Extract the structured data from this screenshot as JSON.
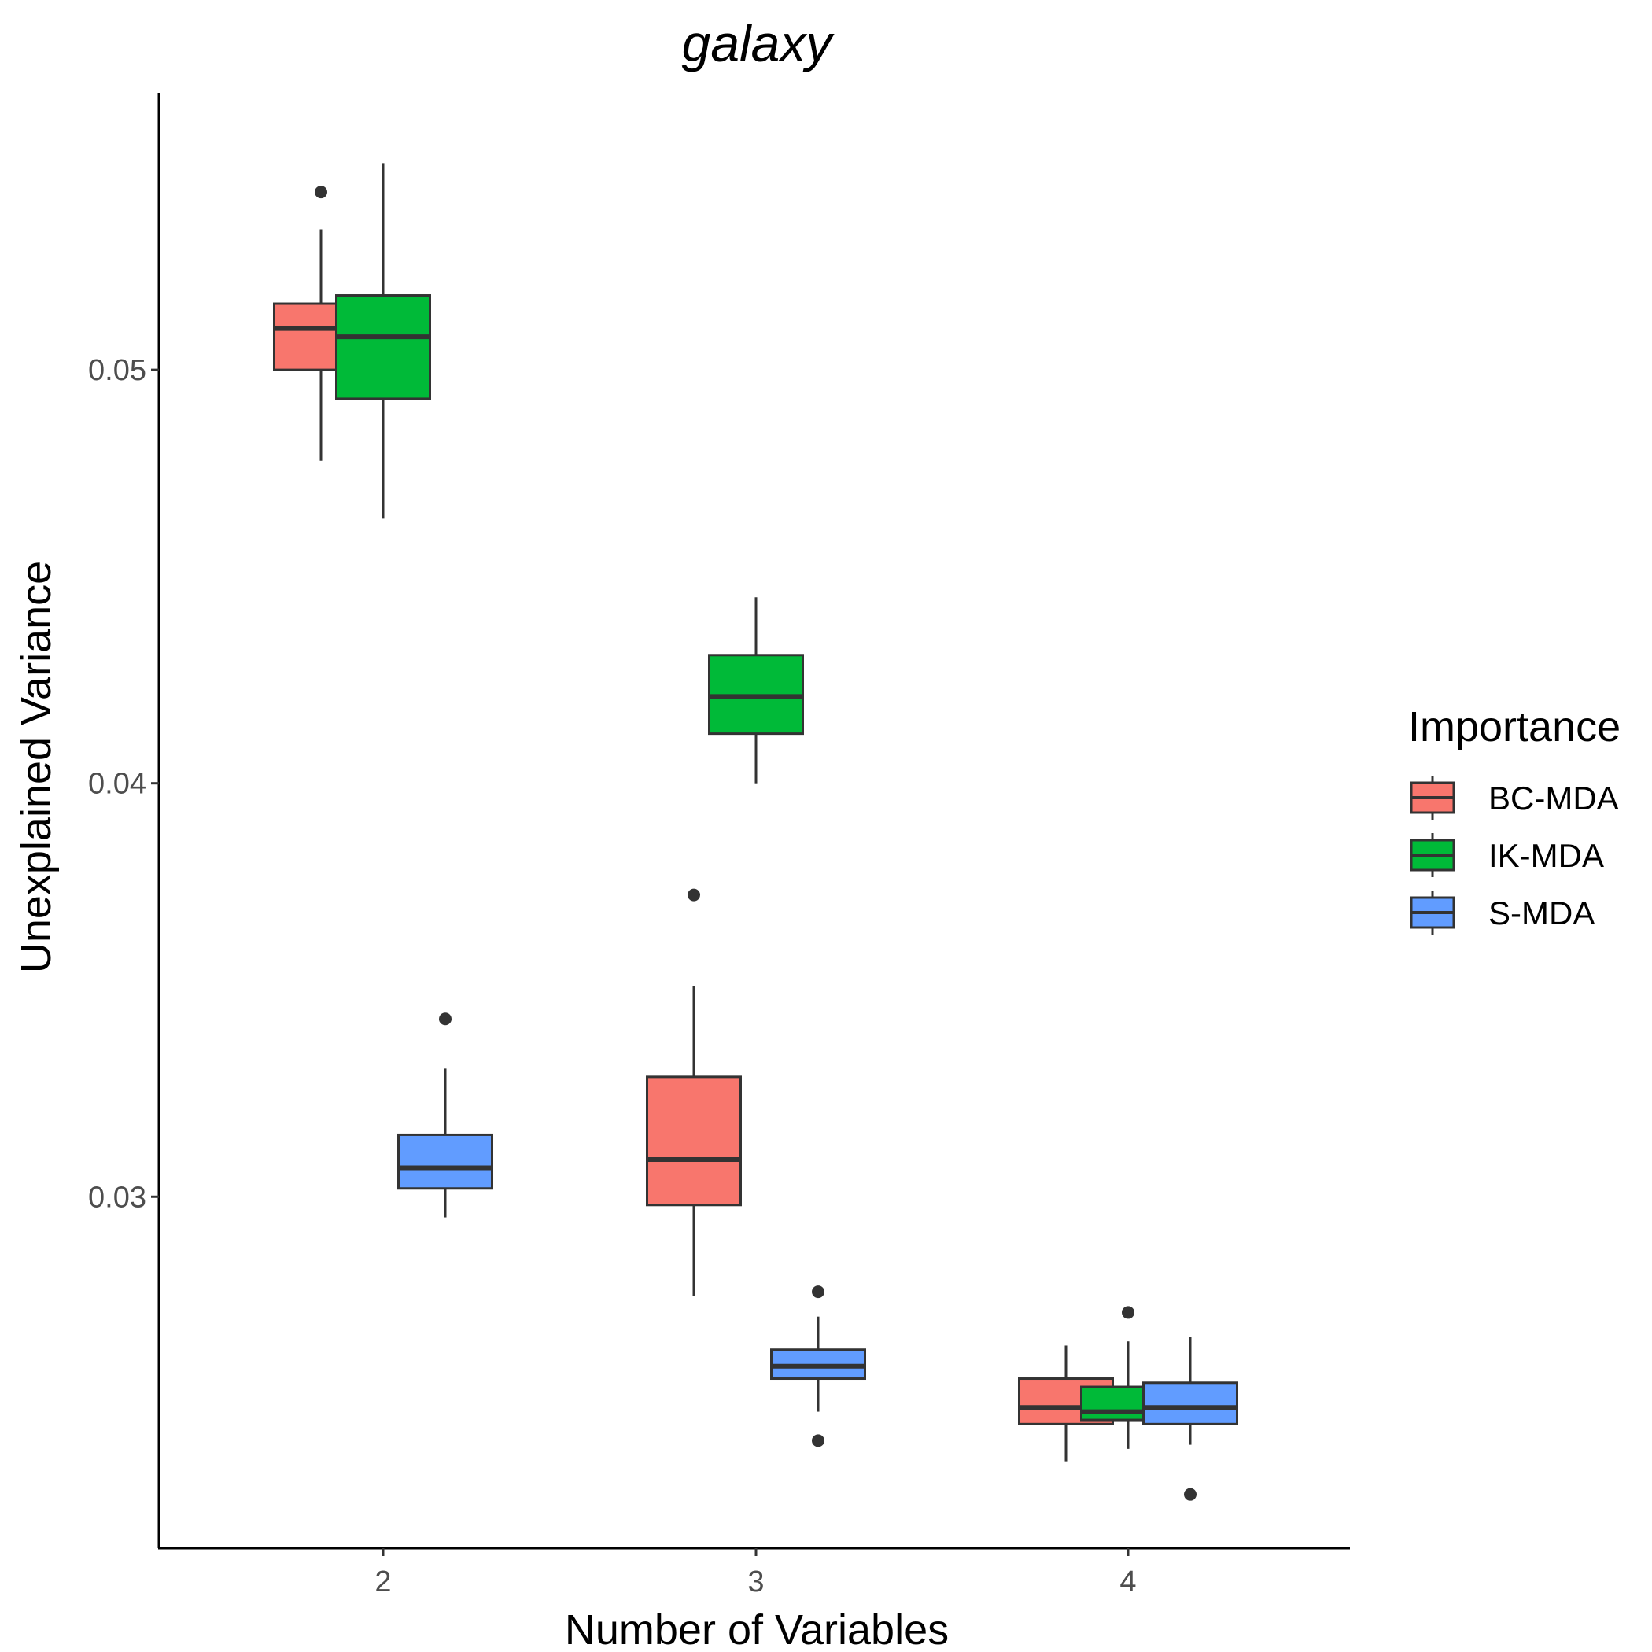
{
  "chart_data": {
    "type": "box",
    "title": "galaxy",
    "xlabel": "Number of Variables",
    "ylabel": "Unexplained Variance",
    "categories": [
      "2",
      "3",
      "4"
    ],
    "y_ticks": [
      {
        "value": 0.03,
        "label": "0.03"
      },
      {
        "value": 0.04,
        "label": "0.04"
      },
      {
        "value": 0.05,
        "label": "0.05"
      }
    ],
    "ylim": [
      0.0215,
      0.0567
    ],
    "grid": false,
    "legend": {
      "title": "Importance",
      "position": "right",
      "entries": [
        "BC-MDA",
        "IK-MDA",
        "S-MDA"
      ]
    },
    "series": [
      {
        "name": "BC-MDA",
        "color": "#F8766D",
        "boxes": [
          {
            "category": "2",
            "whisker_low": 0.0478,
            "q1": 0.05,
            "median": 0.051,
            "q3": 0.0516,
            "whisker_high": 0.0534,
            "outliers": [
              0.0543
            ]
          },
          {
            "category": "3",
            "whisker_low": 0.0276,
            "q1": 0.0298,
            "median": 0.0309,
            "q3": 0.0329,
            "whisker_high": 0.0351,
            "outliers": [
              0.0373
            ]
          },
          {
            "category": "4",
            "whisker_low": 0.0236,
            "q1": 0.0245,
            "median": 0.0249,
            "q3": 0.0256,
            "whisker_high": 0.0264,
            "outliers": []
          }
        ]
      },
      {
        "name": "IK-MDA",
        "color": "#00BA38",
        "boxes": [
          {
            "category": "2",
            "whisker_low": 0.0464,
            "q1": 0.0493,
            "median": 0.0508,
            "q3": 0.0518,
            "whisker_high": 0.055,
            "outliers": []
          },
          {
            "category": "3",
            "whisker_low": 0.04,
            "q1": 0.0412,
            "median": 0.0421,
            "q3": 0.0431,
            "whisker_high": 0.0445,
            "outliers": []
          },
          {
            "category": "4",
            "whisker_low": 0.0239,
            "q1": 0.0246,
            "median": 0.0248,
            "q3": 0.0254,
            "whisker_high": 0.0265,
            "outliers": [
              0.0272
            ]
          }
        ]
      },
      {
        "name": "S-MDA",
        "color": "#619CFF",
        "boxes": [
          {
            "category": "2",
            "whisker_low": 0.0295,
            "q1": 0.0302,
            "median": 0.0307,
            "q3": 0.0315,
            "whisker_high": 0.0331,
            "outliers": [
              0.0343
            ]
          },
          {
            "category": "3",
            "whisker_low": 0.0248,
            "q1": 0.0256,
            "median": 0.0259,
            "q3": 0.0263,
            "whisker_high": 0.0271,
            "outliers": [
              0.0277,
              0.0241
            ]
          },
          {
            "category": "4",
            "whisker_low": 0.024,
            "q1": 0.0245,
            "median": 0.0249,
            "q3": 0.0255,
            "whisker_high": 0.0266,
            "outliers": [
              0.0228
            ]
          }
        ]
      }
    ]
  }
}
